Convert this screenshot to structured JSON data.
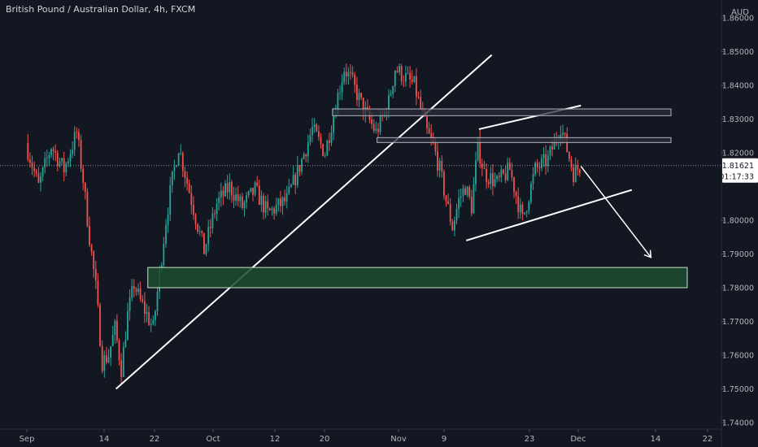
{
  "header": {
    "symbol": "British Pound / Australian Dollar, 4h, FXCM"
  },
  "price_axis": {
    "currency": "AUD",
    "current_price": "1.81621",
    "countdown": "01:17:33"
  },
  "colors": {
    "background": "#131722",
    "up_candle": "#26a69a",
    "down_candle": "#ef5350",
    "axis_text": "#b2b5be",
    "line": "#ffffff",
    "zone_fill": "#1e4b30",
    "box_fill": "#2a2e39"
  },
  "chart_data": {
    "type": "candlestick",
    "title": "British Pound / Australian Dollar, 4h, FXCM",
    "y_unit": "AUD",
    "ylim": [
      1.74,
      1.86
    ],
    "y_ticks": [
      "1.74000",
      "1.75000",
      "1.76000",
      "1.77000",
      "1.78000",
      "1.79000",
      "1.80000",
      "1.81000",
      "1.82000",
      "1.83000",
      "1.84000",
      "1.85000",
      "1.86000"
    ],
    "x_ticks": [
      "Sep",
      "14",
      "22",
      "Oct",
      "12",
      "20",
      "Nov",
      "9",
      "23",
      "Dec",
      "14",
      "22"
    ],
    "grid": false,
    "price_path": [
      [
        "Sep 1",
        1.823
      ],
      [
        "Sep 3",
        1.81
      ],
      [
        "Sep 5",
        1.822
      ],
      [
        "Sep 7",
        1.815
      ],
      [
        "Sep 9",
        1.826
      ],
      [
        "Sep 10",
        1.812
      ],
      [
        "Sep 11",
        1.795
      ],
      [
        "Sep 12",
        1.78
      ],
      [
        "Sep 13",
        1.758
      ],
      [
        "Sep 14",
        1.76
      ],
      [
        "Sep 15",
        1.768
      ],
      [
        "Sep 16",
        1.756
      ],
      [
        "Sep 17",
        1.772
      ],
      [
        "Sep 18",
        1.781
      ],
      [
        "Sep 19",
        1.776
      ],
      [
        "Sep 21",
        1.768
      ],
      [
        "Sep 23",
        1.8
      ],
      [
        "Sep 24",
        1.812
      ],
      [
        "Sep 25",
        1.822
      ],
      [
        "Sep 27",
        1.806
      ],
      [
        "Sep 29",
        1.791
      ],
      [
        "Oct 1",
        1.805
      ],
      [
        "Oct 3",
        1.81
      ],
      [
        "Oct 5",
        1.804
      ],
      [
        "Oct 7",
        1.809
      ],
      [
        "Oct 9",
        1.802
      ],
      [
        "Oct 12",
        1.806
      ],
      [
        "Oct 14",
        1.816
      ],
      [
        "Oct 16",
        1.827
      ],
      [
        "Oct 18",
        1.82
      ],
      [
        "Oct 20",
        1.837
      ],
      [
        "Oct 21",
        1.845
      ],
      [
        "Oct 22",
        1.842
      ],
      [
        "Oct 24",
        1.833
      ],
      [
        "Oct 26",
        1.826
      ],
      [
        "Oct 28",
        1.835
      ],
      [
        "Oct 29",
        1.845
      ],
      [
        "Nov 1",
        1.84
      ],
      [
        "Nov 3",
        1.826
      ],
      [
        "Nov 4",
        1.822
      ],
      [
        "Nov 5",
        1.815
      ],
      [
        "Nov 6",
        1.806
      ],
      [
        "Nov 7",
        1.798
      ],
      [
        "Nov 8",
        1.806
      ],
      [
        "Nov 9",
        1.81
      ],
      [
        "Nov 10",
        1.804
      ],
      [
        "Nov 11",
        1.822
      ],
      [
        "Nov 12",
        1.814
      ],
      [
        "Nov 14",
        1.811
      ],
      [
        "Nov 16",
        1.815
      ],
      [
        "Nov 18",
        1.8
      ],
      [
        "Nov 20",
        1.815
      ],
      [
        "Nov 22",
        1.818
      ],
      [
        "Nov 24",
        1.828
      ],
      [
        "Nov 26",
        1.814
      ],
      [
        "Nov 27",
        1.816
      ]
    ],
    "annotations": [
      {
        "type": "trendline",
        "from": [
          "Sep 15",
          1.75
        ],
        "to": [
          "Nov 13",
          1.849
        ]
      },
      {
        "type": "trendline",
        "from": [
          "Nov 11",
          1.827
        ],
        "to": [
          "Nov 27",
          1.834
        ]
      },
      {
        "type": "trendline",
        "from": [
          "Nov 9",
          1.794
        ],
        "to": [
          "Dec 5",
          1.809
        ]
      },
      {
        "type": "arrow",
        "from": [
          "Nov 27",
          1.816
        ],
        "to": [
          "Dec 8",
          1.789
        ]
      },
      {
        "type": "zone",
        "x": [
          "Sep 20",
          "Dec 20"
        ],
        "y": [
          1.78,
          1.786
        ]
      },
      {
        "type": "box",
        "x": [
          "Oct 19",
          "Dec 14"
        ],
        "y": [
          1.831,
          1.833
        ]
      },
      {
        "type": "box",
        "x": [
          "Oct 26",
          "Dec 13"
        ],
        "y": [
          1.8235,
          1.8245
        ]
      }
    ],
    "current_price": 1.81621
  }
}
